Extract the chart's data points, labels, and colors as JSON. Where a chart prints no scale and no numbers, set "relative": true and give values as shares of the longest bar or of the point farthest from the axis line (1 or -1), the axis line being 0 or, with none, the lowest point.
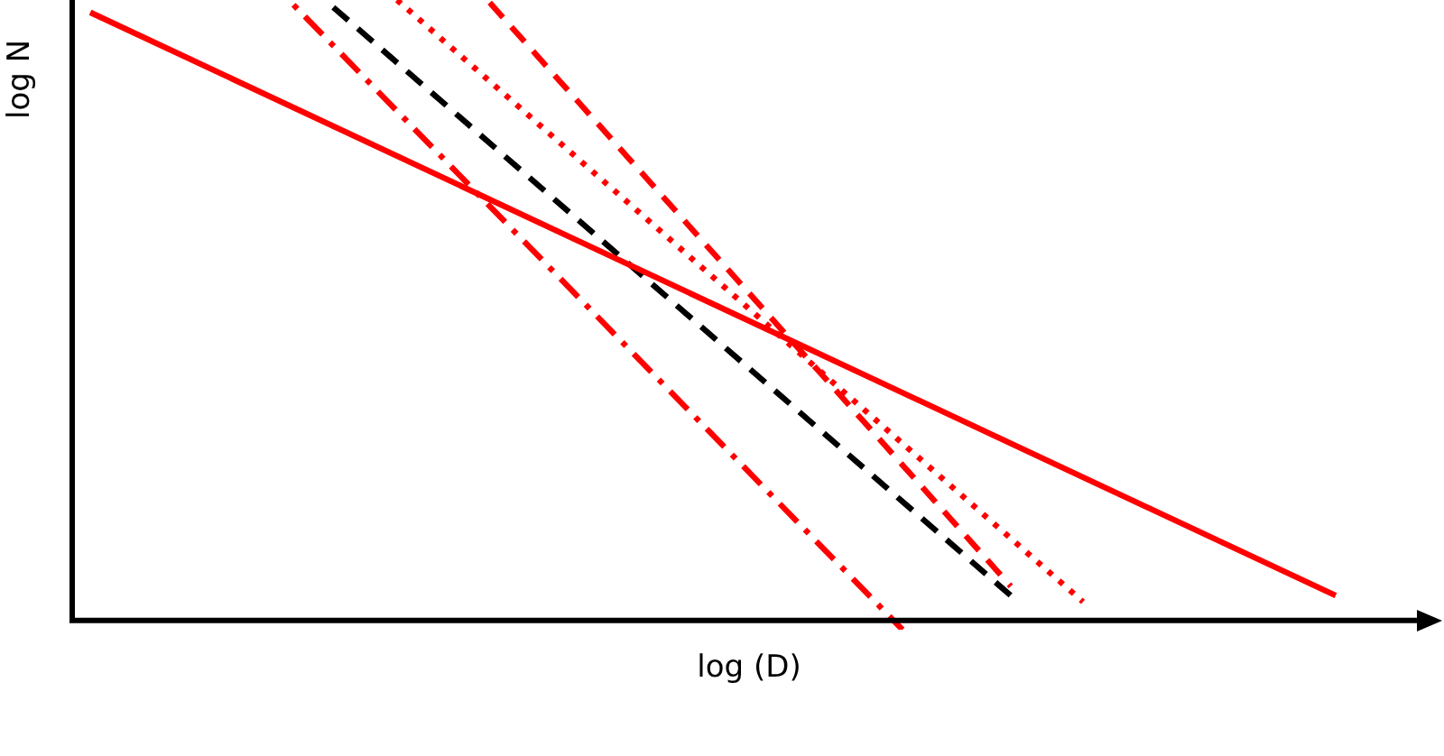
{
  "chart_data": {
    "type": "line",
    "xlabel": "log (D)",
    "ylabel": "log N",
    "relative": true,
    "legend": false,
    "grid": false,
    "tick_labels": false,
    "marker": "none",
    "categories": [
      null,
      null,
      null,
      null,
      null,
      null,
      null,
      null,
      null,
      null,
      null,
      null,
      null,
      null,
      null,
      null,
      null,
      null,
      null,
      null,
      null,
      null,
      null,
      null,
      null,
      null,
      null,
      null,
      null,
      null,
      null,
      null,
      null,
      null,
      null,
      null,
      null,
      null,
      null,
      null,
      null,
      null,
      null,
      null,
      null,
      null,
      null,
      null,
      null,
      null,
      null,
      null,
      null,
      null,
      null,
      null,
      null,
      null,
      null,
      null,
      null,
      null,
      null,
      null,
      null,
      null,
      null,
      null,
      null,
      null,
      null,
      null,
      null,
      null,
      null,
      null
    ],
    "series": [
      {
        "color": "#ff0000",
        "line_style": "solid",
        "values": [
          null,
          0.98,
          null,
          null,
          null,
          null,
          null,
          null,
          null,
          null,
          null,
          null,
          null,
          null,
          null,
          null,
          null,
          null,
          null,
          null,
          null,
          null,
          null,
          null,
          null,
          null,
          null,
          null,
          null,
          null,
          null,
          null,
          null,
          null,
          null,
          null,
          null,
          null,
          null,
          null,
          null,
          null,
          null,
          null,
          null,
          null,
          null,
          null,
          null,
          null,
          null,
          null,
          null,
          null,
          null,
          null,
          null,
          null,
          null,
          null,
          null,
          null,
          null,
          null,
          null,
          null,
          null,
          null,
          null,
          null,
          0.04,
          null,
          null,
          null,
          null,
          null
        ]
      },
      {
        "color": "#000000",
        "line_style": "dashed",
        "values": [
          null,
          null,
          null,
          null,
          null,
          null,
          null,
          null,
          null,
          null,
          null,
          null,
          null,
          null,
          1,
          null,
          null,
          null,
          null,
          null,
          null,
          null,
          null,
          null,
          null,
          null,
          null,
          null,
          null,
          null,
          null,
          null,
          null,
          null,
          null,
          null,
          null,
          null,
          null,
          null,
          null,
          null,
          null,
          null,
          null,
          null,
          null,
          null,
          null,
          null,
          null,
          null,
          0.04,
          null,
          null,
          null,
          null,
          null,
          null,
          null,
          null,
          null,
          null,
          null,
          null,
          null,
          null,
          null,
          null,
          null,
          null,
          null,
          null,
          null,
          null,
          null
        ]
      },
      {
        "color": "#ff0000",
        "line_style": "dotted",
        "values": [
          null,
          null,
          null,
          null,
          null,
          null,
          null,
          null,
          null,
          null,
          null,
          null,
          null,
          null,
          null,
          null,
          null,
          null,
          1,
          null,
          null,
          null,
          null,
          null,
          null,
          null,
          null,
          null,
          null,
          null,
          null,
          null,
          null,
          null,
          null,
          null,
          null,
          null,
          null,
          null,
          null,
          null,
          null,
          null,
          null,
          null,
          null,
          null,
          null,
          null,
          null,
          null,
          null,
          null,
          null,
          null,
          0.03,
          null,
          null,
          null,
          null,
          null,
          null,
          null,
          null,
          null,
          null,
          null,
          null,
          null,
          null,
          null,
          null,
          null,
          null,
          null
        ]
      },
      {
        "color": "#ff0000",
        "line_style": "dashed",
        "values": [
          null,
          null,
          null,
          null,
          null,
          null,
          null,
          null,
          null,
          null,
          null,
          null,
          null,
          null,
          null,
          null,
          null,
          null,
          null,
          null,
          null,
          null,
          null,
          1,
          null,
          null,
          null,
          null,
          null,
          null,
          null,
          null,
          null,
          null,
          null,
          null,
          null,
          null,
          null,
          null,
          null,
          null,
          null,
          null,
          null,
          null,
          null,
          null,
          null,
          null,
          null,
          null,
          0.055,
          null,
          null,
          null,
          null,
          null,
          null,
          null,
          null,
          null,
          null,
          null,
          null,
          null,
          null,
          null,
          null,
          null,
          null,
          null,
          null,
          null,
          null,
          null
        ]
      },
      {
        "color": "#ff0000",
        "line_style": "dashdot",
        "values": [
          null,
          null,
          null,
          null,
          null,
          null,
          null,
          null,
          null,
          null,
          null,
          null,
          1,
          null,
          null,
          null,
          null,
          null,
          null,
          null,
          null,
          null,
          null,
          null,
          null,
          null,
          null,
          null,
          null,
          null,
          null,
          null,
          null,
          null,
          null,
          null,
          null,
          null,
          null,
          null,
          null,
          null,
          null,
          null,
          null,
          null,
          -0.015,
          null,
          null,
          null,
          null,
          null,
          null,
          null,
          null,
          null,
          null,
          null,
          null,
          null,
          null,
          null,
          null,
          null,
          null,
          null,
          null,
          null,
          null,
          null,
          null,
          null,
          null,
          null,
          null,
          null
        ]
      }
    ]
  }
}
